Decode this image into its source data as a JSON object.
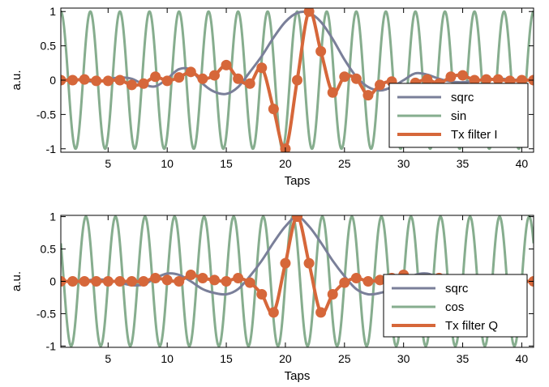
{
  "chart_data": [
    {
      "type": "line",
      "xlabel": "Taps",
      "ylabel": "a.u.",
      "xlim": [
        1,
        41
      ],
      "ylim": [
        -1.05,
        1.05
      ],
      "xticks": [
        5,
        10,
        15,
        20,
        25,
        30,
        35,
        40
      ],
      "yticks": [
        1,
        0.5,
        0,
        -0.5,
        -1
      ],
      "ytick_labels": [
        "1",
        "0.5",
        "0",
        "-0.5",
        "-1"
      ],
      "grid": false,
      "legend_position": "bottom-right",
      "colors": {
        "sqrc": "#7a7f99",
        "carrier": "#86ad8e",
        "filter": "#d6673a"
      },
      "series": [
        {
          "name": "sqrc",
          "role": "sqrc",
          "x": [
            1,
            2,
            3,
            4,
            5,
            6,
            7,
            8,
            9,
            10,
            11,
            12,
            13,
            14,
            15,
            16,
            17,
            18,
            19,
            20,
            21,
            22,
            23,
            24,
            25,
            26,
            27,
            28,
            29,
            30,
            31,
            32,
            33,
            34,
            35,
            36,
            37,
            38,
            39,
            40,
            41
          ],
          "values": [
            0,
            0.01,
            -0.01,
            -0.02,
            0.01,
            0.04,
            0.02,
            -0.06,
            -0.09,
            0.02,
            0.16,
            0.15,
            -0.05,
            -0.17,
            -0.2,
            -0.1,
            0.12,
            0.35,
            0.62,
            0.85,
            0.98,
            0.98,
            0.85,
            0.6,
            0.3,
            0.05,
            -0.1,
            -0.15,
            -0.1,
            0,
            0.1,
            0.08,
            0.02,
            -0.02,
            -0.03,
            -0.01,
            0.01,
            0.02,
            0.01,
            0,
            0
          ]
        },
        {
          "name": "sin",
          "role": "carrier",
          "period": 2.5,
          "phase_start": 1,
          "amplitude": 1
        },
        {
          "name": "Tx filter I",
          "role": "filter",
          "x": [
            1,
            2,
            3,
            4,
            5,
            6,
            7,
            8,
            9,
            10,
            11,
            12,
            13,
            14,
            15,
            16,
            17,
            18,
            19,
            20,
            21,
            22,
            23,
            24,
            25,
            26,
            27,
            28,
            29,
            30,
            31,
            32,
            33,
            34,
            35,
            36,
            37,
            38,
            39,
            40,
            41
          ],
          "values": [
            0,
            0,
            0.01,
            -0.01,
            -0.01,
            0,
            -0.07,
            -0.05,
            0.05,
            -0.01,
            0.04,
            0.12,
            0.02,
            0.07,
            0.22,
            0.02,
            -0.05,
            0.18,
            -0.42,
            -1,
            0,
            1,
            0.42,
            -0.18,
            0.05,
            0.02,
            -0.22,
            -0.07,
            -0.02,
            -0.12,
            -0.04,
            0.01,
            -0.05,
            0.05,
            0.07,
            0,
            0.01,
            0.01,
            -0.01,
            0,
            0
          ]
        }
      ]
    },
    {
      "type": "line",
      "xlabel": "Taps",
      "ylabel": "a.u.",
      "xlim": [
        1,
        41
      ],
      "ylim": [
        -1.02,
        1.02
      ],
      "xticks": [
        5,
        10,
        15,
        20,
        25,
        30,
        35,
        40
      ],
      "yticks": [
        1,
        0.5,
        0,
        -0.5,
        -1
      ],
      "ytick_labels": [
        "1",
        "0.5",
        "0",
        "-0.5",
        "-1"
      ],
      "grid": false,
      "legend_position": "bottom-right",
      "colors": {
        "sqrc": "#7a7f99",
        "carrier": "#86ad8e",
        "filter": "#d6673a"
      },
      "series": [
        {
          "name": "sqrc",
          "role": "sqrc",
          "x": [
            1,
            2,
            3,
            4,
            5,
            6,
            7,
            8,
            9,
            10,
            11,
            12,
            13,
            14,
            15,
            16,
            17,
            18,
            19,
            20,
            21,
            22,
            23,
            24,
            25,
            26,
            27,
            28,
            29,
            30,
            31,
            32,
            33,
            34,
            35,
            36,
            37,
            38,
            39,
            40,
            41
          ],
          "values": [
            0,
            0,
            0.01,
            0.03,
            0.02,
            -0.02,
            -0.06,
            -0.05,
            0.05,
            0.12,
            0.1,
            0,
            -0.12,
            -0.18,
            -0.2,
            -0.12,
            0.08,
            0.32,
            0.6,
            0.85,
            1,
            0.85,
            0.6,
            0.32,
            0.08,
            -0.12,
            -0.2,
            -0.18,
            -0.12,
            0,
            0.1,
            0.12,
            0.05,
            -0.05,
            -0.06,
            -0.02,
            0.02,
            0.03,
            0.01,
            0,
            0
          ]
        },
        {
          "name": "cos",
          "role": "carrier",
          "period": 2.5,
          "phase_start": 0.625,
          "amplitude": 1
        },
        {
          "name": "Tx filter Q",
          "role": "filter",
          "x": [
            1,
            2,
            3,
            4,
            5,
            6,
            7,
            8,
            9,
            10,
            11,
            12,
            13,
            14,
            15,
            16,
            17,
            18,
            19,
            20,
            21,
            22,
            23,
            24,
            25,
            26,
            27,
            28,
            29,
            30,
            31,
            32,
            33,
            34,
            35,
            36,
            37,
            38,
            39,
            40,
            41
          ],
          "values": [
            0,
            0,
            0,
            0,
            0,
            0,
            0,
            0,
            0.05,
            0.02,
            0,
            0.1,
            0.05,
            0.02,
            0,
            0.05,
            -0.02,
            -0.2,
            -0.48,
            0.28,
            1,
            0.28,
            -0.48,
            -0.2,
            -0.02,
            0.05,
            0,
            0.02,
            0.05,
            0.1,
            0,
            0.02,
            0.05,
            0,
            0,
            0,
            0,
            0,
            0,
            0,
            0
          ]
        }
      ]
    }
  ]
}
